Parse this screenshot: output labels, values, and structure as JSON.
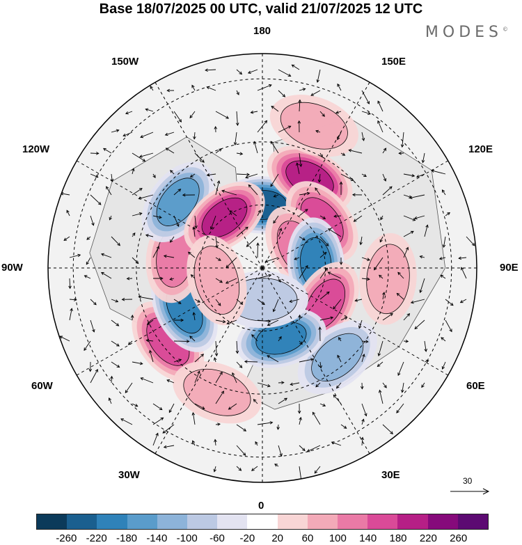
{
  "title": "Base 18/07/2025 00 UTC, valid 21/07/2025 12 UTC",
  "brand": "MODES",
  "brand_mark": "©",
  "longitude_labels": {
    "top": "180",
    "bottom": "0",
    "left": "90W",
    "right": "90E",
    "w150": "150W",
    "e150": "150E",
    "w120": "120W",
    "e120": "120E",
    "w60": "60W",
    "e60": "60E",
    "w30": "30W",
    "e30": "30E"
  },
  "reference_vector": "30",
  "colorbar": {
    "colors": [
      "#0b3a5a",
      "#1a5f8f",
      "#2f82b9",
      "#5a9ccb",
      "#8db3d9",
      "#bcc9e3",
      "#e3e3f1",
      "#ffffff",
      "#f8d5d5",
      "#f3aab8",
      "#ea7aa6",
      "#da4a98",
      "#b61f86",
      "#860a7b",
      "#5c0a72"
    ],
    "ticks": [
      "-260",
      "-220",
      "-180",
      "-140",
      "-100",
      "-60",
      "-20",
      "20",
      "60",
      "100",
      "140",
      "180",
      "220",
      "260"
    ]
  },
  "anomalies": [
    {
      "lon": 180,
      "colat": 20,
      "value": -220
    },
    {
      "lon": 152,
      "colat": 32,
      "value": 200
    },
    {
      "lon": 128,
      "colat": 24,
      "value": 140
    },
    {
      "lon": 118,
      "colat": 13,
      "value": 100
    },
    {
      "lon": 95,
      "colat": 17,
      "value": -180
    },
    {
      "lon": 60,
      "colat": 23,
      "value": 160
    },
    {
      "lon": 40,
      "colat": 37,
      "value": -120
    },
    {
      "lon": 15,
      "colat": 23,
      "value": -180
    },
    {
      "lon": -52,
      "colat": 38,
      "value": 140
    },
    {
      "lon": -62,
      "colat": 28,
      "value": -180
    },
    {
      "lon": -97,
      "colat": 28,
      "value": 100
    },
    {
      "lon": -128,
      "colat": 34,
      "value": -160
    },
    {
      "lon": -143,
      "colat": 20,
      "value": 200
    },
    {
      "lon": 0,
      "colat": 10,
      "value": -60
    },
    {
      "lon": -20,
      "colat": 42,
      "value": 60
    },
    {
      "lon": 160,
      "colat": 48,
      "value": 60
    },
    {
      "lon": 85,
      "colat": 40,
      "value": 60
    },
    {
      "lon": -75,
      "colat": 15,
      "value": 60
    }
  ]
}
